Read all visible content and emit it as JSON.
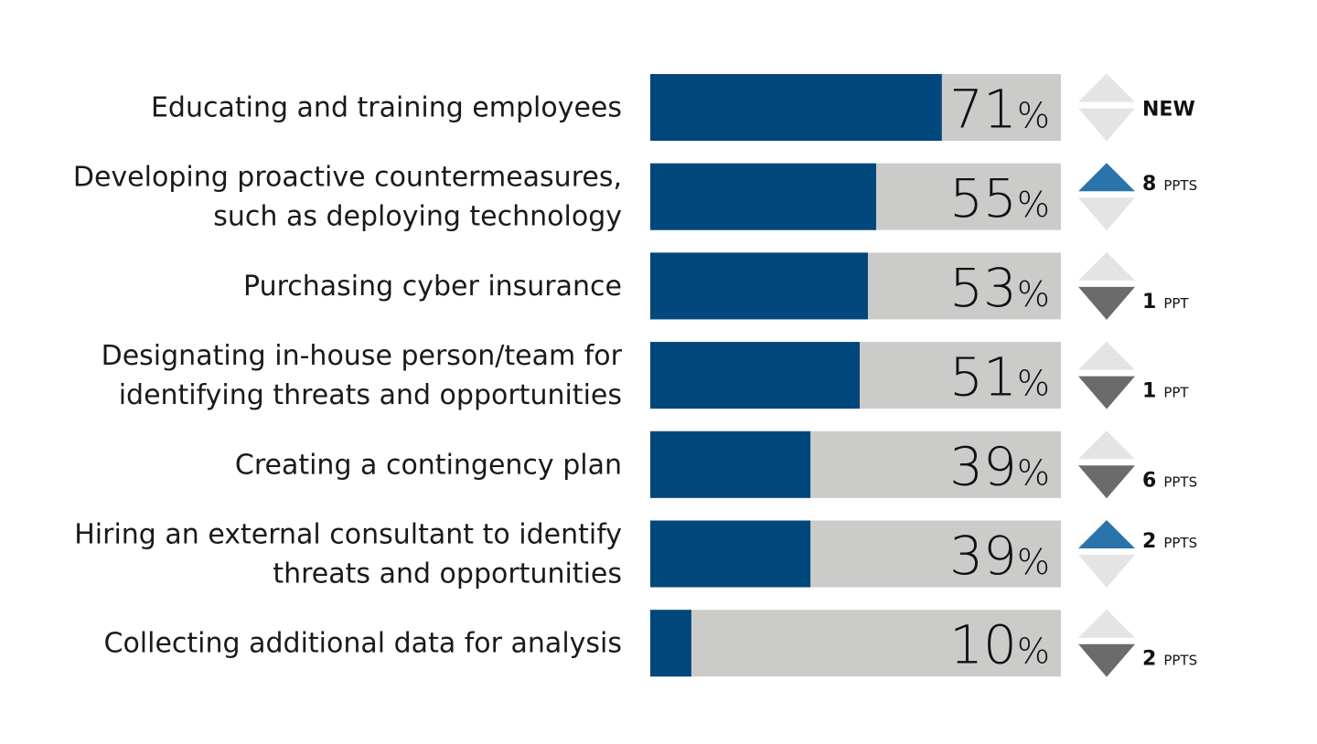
{
  "chart_data": {
    "type": "bar",
    "orientation": "horizontal",
    "title": "",
    "xlabel": "",
    "ylabel": "",
    "xlim": [
      0,
      100
    ],
    "grid": false,
    "unit_suffix": "%",
    "colors": {
      "bar": "#00477c",
      "track": "#cbccca",
      "up": "#2b74ab",
      "down": "#6b6b6b",
      "neutral": "#e4e4e4"
    },
    "categories": [
      [
        "Educating and training employees"
      ],
      [
        "Developing proactive countermeasures,",
        "such as deploying technology"
      ],
      [
        "Purchasing cyber insurance"
      ],
      [
        "Designating in-house person/team for",
        "identifying threats and opportunities"
      ],
      [
        "Creating a contingency plan"
      ],
      [
        "Hiring an external consultant to identify",
        "threats and opportunities"
      ],
      [
        "Collecting additional data for analysis"
      ]
    ],
    "values": [
      71,
      55,
      53,
      51,
      39,
      39,
      10
    ],
    "changes": [
      {
        "direction": "new",
        "value": "NEW",
        "unit": ""
      },
      {
        "direction": "up",
        "value": "8",
        "unit": "PPTS"
      },
      {
        "direction": "down",
        "value": "1",
        "unit": "PPT"
      },
      {
        "direction": "down",
        "value": "1",
        "unit": "PPT"
      },
      {
        "direction": "down",
        "value": "6",
        "unit": "PPTS"
      },
      {
        "direction": "up",
        "value": "2",
        "unit": "PPTS"
      },
      {
        "direction": "down",
        "value": "2",
        "unit": "PPTS"
      }
    ]
  }
}
